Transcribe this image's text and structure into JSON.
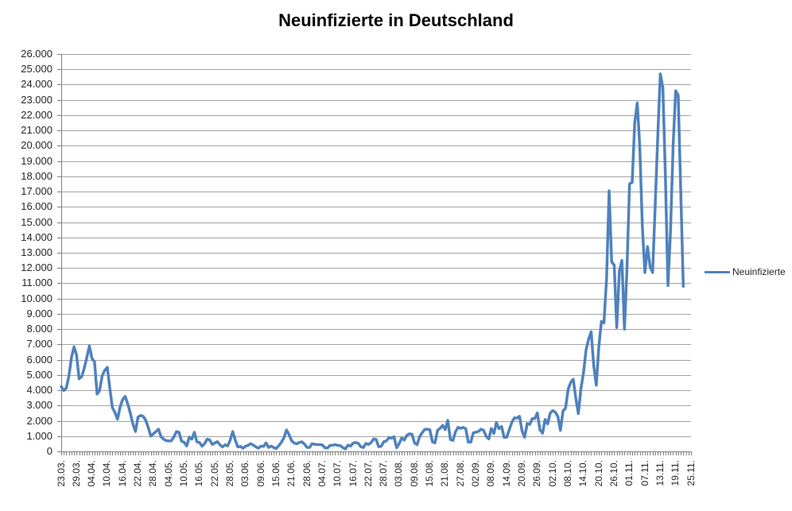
{
  "colors": {
    "line": "#4F81BD",
    "grid": "#A3A3A3",
    "axis": "#808080",
    "text": "#262626",
    "title": "#000000",
    "background": "#FFFFFF"
  },
  "legend": {
    "label": "Neuinfizierte"
  },
  "chart_data": {
    "type": "line",
    "title": "Neuinfizierte in Deutschland",
    "xlabel": "",
    "ylabel": "",
    "ylim": [
      0,
      26000
    ],
    "y_step": 1000,
    "grid": "horizontal",
    "legend_position": "right",
    "y_tick_labels": [
      "0",
      "1.000",
      "2.000",
      "3.000",
      "4.000",
      "5.000",
      "6.000",
      "7.000",
      "8.000",
      "9.000",
      "10.000",
      "11.000",
      "12.000",
      "13.000",
      "14.000",
      "15.000",
      "16.000",
      "17.000",
      "18.000",
      "19.000",
      "20.000",
      "21.000",
      "22.000",
      "23.000",
      "24.000",
      "25.000",
      "26.000"
    ],
    "x_tick_labels": [
      "23.03.",
      "29.03.",
      "04.04.",
      "10.04.",
      "16.04.",
      "22.04.",
      "28.04.",
      "04.05.",
      "10.05.",
      "16.05.",
      "22.05.",
      "28.05.",
      "03.06.",
      "09.06.",
      "15.06.",
      "21.06.",
      "28.06.",
      "04.07.",
      "10.07.",
      "16.07.",
      "22.07.",
      "28.07.",
      "03.08.",
      "09.08.",
      "15.08.",
      "21.08.",
      "27.08.",
      "02.09.",
      "08.09.",
      "14.09.",
      "20.09.",
      "26.09.",
      "02.10.",
      "08.10.",
      "14.10.",
      "20.10.",
      "26.10.",
      "01.11.",
      "07.11.",
      "13.11.",
      "19.11.",
      "25.11."
    ],
    "x_tick_interval": 6,
    "series": [
      {
        "name": "Neuinfizierte",
        "color": "#4F81BD",
        "values": [
          4250,
          3980,
          4150,
          4950,
          6150,
          6850,
          6300,
          4750,
          4900,
          5450,
          6150,
          6900,
          6100,
          5850,
          3750,
          4000,
          4950,
          5300,
          5500,
          4100,
          2850,
          2550,
          2100,
          2900,
          3400,
          3600,
          3100,
          2500,
          1800,
          1300,
          2250,
          2350,
          2300,
          2050,
          1550,
          1000,
          1150,
          1300,
          1450,
          950,
          800,
          700,
          680,
          690,
          950,
          1300,
          1250,
          670,
          600,
          360,
          930,
          800,
          1250,
          620,
          580,
          340,
          510,
          800,
          750,
          460,
          550,
          640,
          430,
          290,
          430,
          360,
          740,
          1300,
          740,
          290,
          330,
          215,
          340,
          395,
          510,
          410,
          300,
          215,
          350,
          320,
          555,
          260,
          350,
          250,
          190,
          380,
          600,
          900,
          1400,
          1100,
          690,
          540,
          500,
          590,
          630,
          480,
          260,
          262,
          500,
          465,
          445,
          440,
          420,
          240,
          220,
          390,
          400,
          440,
          395,
          380,
          250,
          160,
          410,
          350,
          535,
          585,
          530,
          305,
          250,
          520,
          455,
          570,
          815,
          780,
          305,
          340,
          635,
          685,
          900,
          870,
          955,
          240,
          510,
          880,
          740,
          1045,
          1150,
          1120,
          555,
          435,
          965,
          1225,
          1445,
          1450,
          1415,
          625,
          560,
          1390,
          1510,
          1705,
          1430,
          2035,
          780,
          710,
          1280,
          1575,
          1505,
          1570,
          1480,
          610,
          610,
          1220,
          1255,
          1310,
          1455,
          1380,
          990,
          815,
          1500,
          1175,
          1890,
          1485,
          1630,
          920,
          925,
          1405,
          1900,
          2195,
          2180,
          2300,
          1345,
          920,
          1820,
          1770,
          2145,
          2155,
          2510,
          1410,
          1190,
          2090,
          1800,
          2505,
          2675,
          2565,
          2280,
          1380,
          2640,
          2830,
          4060,
          4515,
          4720,
          3485,
          2470,
          4120,
          5130,
          6640,
          7335,
          7830,
          5590,
          4325,
          6870,
          8500,
          8400,
          11300,
          17050,
          12400,
          12200,
          8100,
          11800,
          12500,
          8000,
          12000,
          17500,
          17600,
          21500,
          22800,
          19900,
          14700,
          11700,
          13400,
          12100,
          11700,
          16000,
          20500,
          24700,
          23800,
          18000,
          10850,
          14400,
          20000,
          23600,
          23300,
          17000,
          10800,
          null,
          null,
          null
        ]
      }
    ]
  }
}
